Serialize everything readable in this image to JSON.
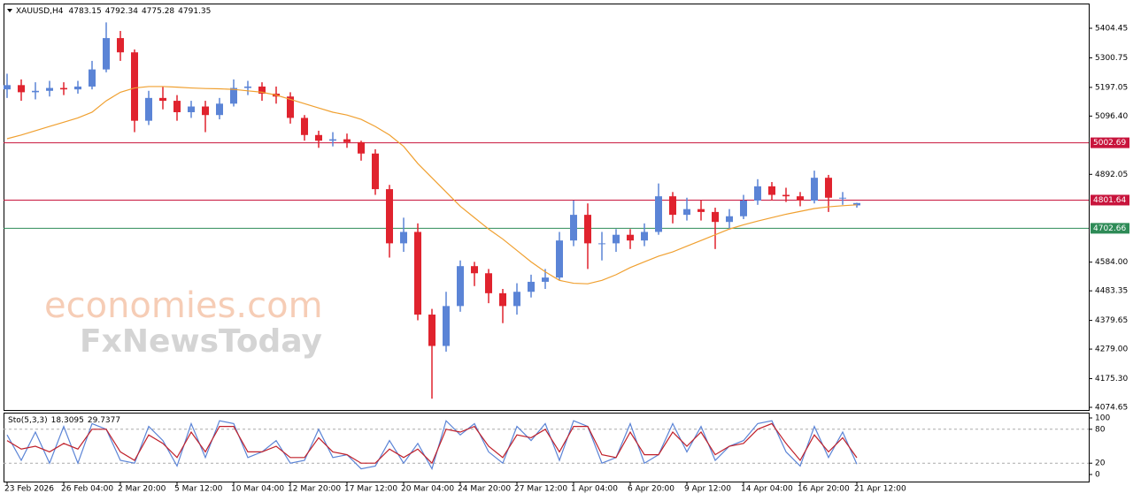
{
  "chart_data": [
    {
      "type": "candlestick",
      "symbol": "XAUUSD,H4",
      "categories": [
        "23 Feb 2026",
        null,
        null,
        null,
        "26 Feb 04:00",
        null,
        null,
        null,
        "2 Mar 20:00",
        null,
        null,
        null,
        "5 Mar 12:00",
        null,
        null,
        null,
        "10 Mar 04:00",
        null,
        null,
        null,
        "12 Mar 20:00",
        null,
        null,
        null,
        "17 Mar 12:00",
        null,
        null,
        null,
        "20 Mar 04:00",
        null,
        null,
        null,
        "24 Mar 20:00",
        null,
        null,
        null,
        "27 Mar 12:00",
        null,
        null,
        null,
        "1 Apr 04:00",
        null,
        null,
        null,
        "6 Apr 20:00",
        null,
        null,
        null,
        "9 Apr 12:00",
        null,
        null,
        null,
        "14 Apr 04:00",
        null,
        null,
        null,
        "16 Apr 20:00",
        null,
        null,
        null,
        "21 Apr 12:00"
      ],
      "open": [
        5190,
        5205,
        5180,
        5185,
        5195,
        5190,
        5200,
        5260,
        5370,
        5320,
        5080,
        5160,
        5150,
        5110,
        5130,
        5100,
        5140,
        5195,
        5200,
        5175,
        5165,
        5090,
        5030,
        5010,
        5015,
        5005,
        4965,
        4840,
        4650,
        4690,
        4400,
        4290,
        4430,
        4570,
        4545,
        4475,
        4430,
        4480,
        4515,
        4530,
        4660,
        4750,
        4650,
        4650,
        4680,
        4660,
        4690,
        4815,
        4750,
        4770,
        4760,
        4725,
        4745,
        4800,
        4850,
        4820,
        4815,
        4800,
        4880,
        4810,
        4783.15
      ],
      "high": [
        5245,
        5225,
        5215,
        5220,
        5215,
        5220,
        5290,
        5425,
        5395,
        5330,
        5185,
        5200,
        5170,
        5150,
        5150,
        5160,
        5225,
        5220,
        5215,
        5200,
        5180,
        5100,
        5045,
        5040,
        5035,
        5010,
        4980,
        4855,
        4740,
        4720,
        4420,
        4480,
        4590,
        4585,
        4560,
        4490,
        4510,
        4540,
        4560,
        4690,
        4800,
        4790,
        4690,
        4700,
        4700,
        4720,
        4860,
        4830,
        4810,
        4800,
        4775,
        4770,
        4820,
        4875,
        4865,
        4845,
        4830,
        4905,
        4890,
        4830,
        4792.34
      ],
      "low": [
        5160,
        5150,
        5155,
        5165,
        5170,
        5175,
        5190,
        5250,
        5290,
        5040,
        5065,
        5120,
        5080,
        5090,
        5040,
        5085,
        5130,
        5170,
        5150,
        5140,
        5070,
        5010,
        4985,
        4990,
        4985,
        4940,
        4820,
        4600,
        4620,
        4380,
        4105,
        4270,
        4410,
        4500,
        4440,
        4370,
        4400,
        4460,
        4490,
        4520,
        4640,
        4560,
        4590,
        4620,
        4630,
        4640,
        4680,
        4720,
        4730,
        4730,
        4630,
        4700,
        4735,
        4785,
        4800,
        4795,
        4780,
        4790,
        4760,
        4785,
        4775.28
      ],
      "close": [
        5205,
        5180,
        5185,
        5195,
        5190,
        5200,
        5260,
        5370,
        5320,
        5080,
        5160,
        5150,
        5110,
        5130,
        5100,
        5140,
        5195,
        5200,
        5175,
        5165,
        5090,
        5030,
        5010,
        5015,
        5005,
        4965,
        4840,
        4650,
        4690,
        4400,
        4290,
        4430,
        4570,
        4545,
        4475,
        4430,
        4480,
        4515,
        4530,
        4660,
        4750,
        4650,
        4650,
        4680,
        4660,
        4690,
        4815,
        4750,
        4770,
        4760,
        4725,
        4745,
        4800,
        4850,
        4820,
        4815,
        4800,
        4880,
        4810,
        4810,
        4791.35
      ],
      "up_color": "#5b84d6",
      "down_color": "#e0232e",
      "moving_average": {
        "color": "#f0a030",
        "values": [
          5017,
          5030,
          5045,
          5060,
          5075,
          5090,
          5110,
          5150,
          5180,
          5195,
          5200,
          5200,
          5198,
          5195,
          5193,
          5192,
          5190,
          5185,
          5180,
          5170,
          5155,
          5140,
          5125,
          5110,
          5100,
          5085,
          5060,
          5030,
          4990,
          4930,
          4880,
          4830,
          4780,
          4740,
          4700,
          4665,
          4625,
          4585,
          4550,
          4520,
          4510,
          4508,
          4520,
          4540,
          4565,
          4585,
          4605,
          4620,
          4640,
          4660,
          4680,
          4700,
          4715,
          4728,
          4740,
          4752,
          4762,
          4772,
          4778,
          4782,
          4785
        ]
      },
      "levels": [
        {
          "value": 5002.69,
          "color": "#c8143c"
        },
        {
          "value": 4801.64,
          "color": "#c8143c"
        },
        {
          "value": 4702.66,
          "color": "#2e8b57"
        }
      ],
      "ylim": [
        4065.35,
        5491.2
      ],
      "yticks": [
        5404.45,
        5300.75,
        5197.05,
        {
          "value": 5096.4,
          "label": "5096.40"
        },
        4892.05,
        {
          "value": 4584,
          "label": "4584.00"
        },
        4483.35,
        4379.65,
        {
          "value": 4279,
          "label": "4279.00"
        },
        {
          "value": 4175.3,
          "label": "4175.30"
        },
        4074.65
      ],
      "watermark": [
        "economies.com",
        "FxNewsToday"
      ]
    },
    {
      "type": "line",
      "title": "Sto(5,3,3)",
      "series": [
        {
          "color": "#5b84d6",
          "values": [
            70,
            25,
            75,
            20,
            85,
            20,
            90,
            80,
            25,
            20,
            85,
            60,
            15,
            90,
            30,
            95,
            90,
            30,
            40,
            60,
            20,
            25,
            80,
            30,
            35,
            10,
            15,
            60,
            20,
            55,
            10,
            95,
            70,
            90,
            40,
            20,
            85,
            60,
            90,
            25,
            95,
            85,
            20,
            30,
            90,
            20,
            35,
            90,
            40,
            85,
            25,
            50,
            60,
            90,
            95,
            40,
            15,
            85,
            30,
            75,
            18.3095
          ]
        },
        {
          "color": "#c0202a",
          "values": [
            60,
            45,
            50,
            40,
            55,
            45,
            80,
            80,
            40,
            25,
            70,
            55,
            30,
            75,
            40,
            85,
            85,
            40,
            40,
            50,
            30,
            30,
            65,
            40,
            35,
            20,
            20,
            45,
            30,
            45,
            20,
            80,
            75,
            85,
            50,
            30,
            70,
            65,
            80,
            40,
            85,
            85,
            35,
            30,
            75,
            35,
            35,
            75,
            50,
            75,
            35,
            50,
            55,
            80,
            90,
            55,
            25,
            70,
            40,
            65,
            29.7377
          ]
        }
      ],
      "levels": [
        20,
        80
      ],
      "ylim": [
        -12.5,
        109.4
      ],
      "yticks": [
        0,
        20,
        80,
        100
      ]
    }
  ]
}
